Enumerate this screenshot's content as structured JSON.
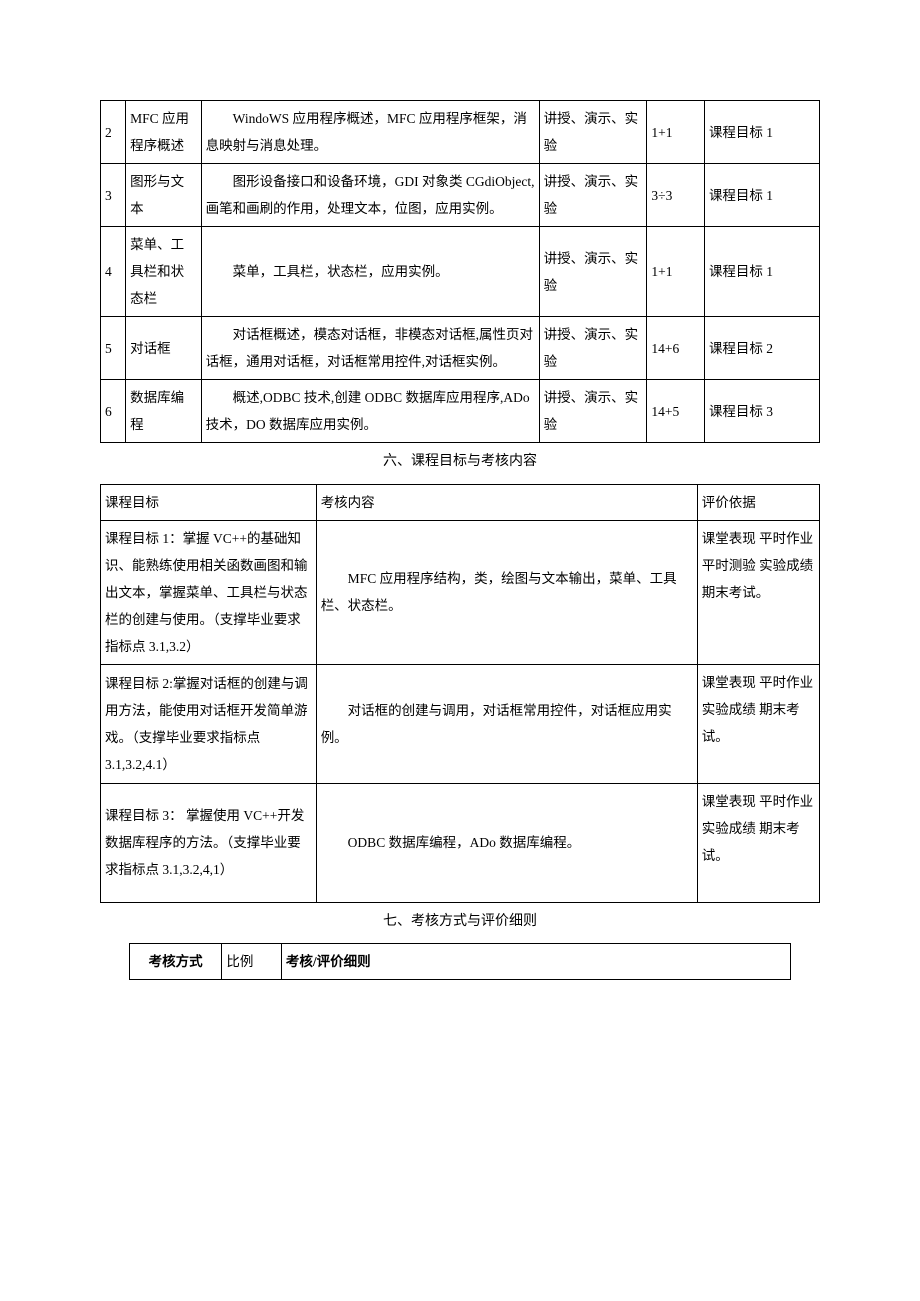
{
  "table1": {
    "rows": [
      {
        "idx": "2",
        "topic": "MFC 应用程序概述",
        "content": "　　WindoWS 应用程序概述，MFC 应用程序框架，消息映射与消息处理。",
        "method": "讲授、演示、实验",
        "hours": "1+1",
        "goal": "课程目标 1"
      },
      {
        "idx": "3",
        "topic": "图形与文本",
        "content": "　　图形设备接口和设备环境，GDI 对象类 CGdiObject,画笔和画刷的作用，处理文本，位图，应用实例。",
        "method": "讲授、演示、实验",
        "hours": "3÷3",
        "goal": "课程目标 1"
      },
      {
        "idx": "4",
        "topic": "菜单、工具栏和状态栏",
        "content": "　　菜单，工具栏，状态栏，应用实例。",
        "method": "讲授、演示、实验",
        "hours": "1+1",
        "goal": "课程目标 1"
      },
      {
        "idx": "5",
        "topic": "对话框",
        "content": "　　对话框概述，模态对话框，非模态对话框,属性页对话框，通用对话框，对话框常用控件,对话框实例。",
        "method": "讲授、演示、实验",
        "hours": "14+6",
        "goal": "课程目标 2"
      },
      {
        "idx": "6",
        "topic": "数据库编程",
        "content": "　　概述,ODBC 技术,创建 ODBC 数据库应用程序,ADo技术，DO 数据库应用实例。",
        "method": "讲授、演示、实验",
        "hours": "14+5",
        "goal": "课程目标 3"
      }
    ]
  },
  "section6_title": "六、课程目标与考核内容",
  "table2": {
    "header": {
      "goal": "课程目标",
      "exam": "考核内容",
      "basis": "评价依据"
    },
    "rows": [
      {
        "goal": "课程目标 1：掌握 VC++的基础知识、能熟练使用相关函数画图和输出文本，掌握菜单、工具栏与状态栏的创建与使用。（支撑毕业要求指标点 3.1,3.2）",
        "exam": "　　MFC 应用程序结构，类，绘图与文本输出，菜单、工具栏、状态栏。",
        "basis": "课堂表现 平时作业 平时测验 实验成绩 期末考试。"
      },
      {
        "goal": "课程目标 2:掌握对话框的创建与调用方法，能使用对话框开发简单游戏。（支撑毕业要求指标点 3.1,3.2,4.1）",
        "exam": "　　对话框的创建与调用，对话框常用控件，对话框应用实例。",
        "basis": "课堂表现 平时作业 实验成绩 期末考试。"
      },
      {
        "goal": "课程目标 3： 掌握使用 VC++开发数据库程序的方法。（支撑毕业要求指标点 3.1,3.2,4,1）",
        "exam": "　　ODBC 数据库编程，ADo 数据库编程。",
        "basis": "课堂表现 平时作业 实验成绩 期末考试。"
      }
    ]
  },
  "section7_title": "七、考核方式与评价细则",
  "table3": {
    "header": {
      "a": "考核方式",
      "b": "比例",
      "c": "考核/评价细则"
    }
  }
}
